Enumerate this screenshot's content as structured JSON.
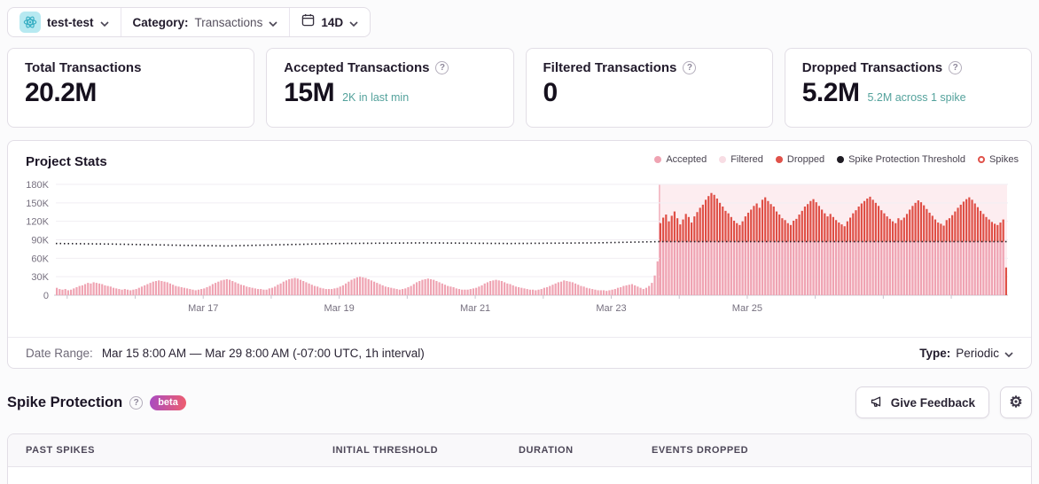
{
  "topbar": {
    "project": "test-test",
    "category_label": "Category:",
    "category_value": "Transactions",
    "date_range": "14D"
  },
  "cards": [
    {
      "title": "Total Transactions",
      "value": "20.2M",
      "sub": ""
    },
    {
      "title": "Accepted Transactions",
      "value": "15M",
      "sub": "2K in last min"
    },
    {
      "title": "Filtered Transactions",
      "value": "0",
      "sub": ""
    },
    {
      "title": "Dropped Transactions",
      "value": "5.2M",
      "sub": "5.2M across 1 spike"
    }
  ],
  "chart": {
    "title": "Project Stats",
    "legend": [
      {
        "label": "Accepted",
        "color": "#efa3b2",
        "marker": "dot"
      },
      {
        "label": "Filtered",
        "color": "#f8dde4",
        "marker": "dot"
      },
      {
        "label": "Dropped",
        "color": "#e0524a",
        "marker": "dot"
      },
      {
        "label": "Spike Protection Threshold",
        "color": "#1f1c24",
        "marker": "dot"
      },
      {
        "label": "Spikes",
        "color": "#e0524a",
        "marker": "ring"
      }
    ]
  },
  "chart_data": {
    "type": "bar",
    "stacked": true,
    "interval": "1h",
    "hours": 336,
    "x_start": "Mar 15 8:00 AM",
    "x_end": "Mar 29 8:00 AM",
    "ylim_k": [
      0,
      180
    ],
    "y_ticks": [
      {
        "k": 180,
        "label": "180K"
      },
      {
        "k": 150,
        "label": "150K"
      },
      {
        "k": 120,
        "label": "120K"
      },
      {
        "k": 90,
        "label": "90K"
      },
      {
        "k": 60,
        "label": "60K"
      },
      {
        "k": 30,
        "label": "30K"
      },
      {
        "k": 0,
        "label": "0"
      }
    ],
    "x_tick_labels": [
      {
        "label": "Mar 17",
        "hour": 52
      },
      {
        "label": "Mar 19",
        "hour": 100
      },
      {
        "label": "Mar 21",
        "hour": 148
      },
      {
        "label": "Mar 23",
        "hour": 196
      },
      {
        "label": "Mar 25",
        "hour": 244
      }
    ],
    "minor_tick_hours": [
      4,
      28,
      52,
      76,
      100,
      124,
      148,
      172,
      196,
      220,
      244,
      268,
      292,
      316
    ],
    "pre_spike_accepted_k": [
      12,
      10,
      9,
      10,
      8,
      9,
      11,
      13,
      15,
      16,
      18,
      20,
      19,
      21,
      20,
      19,
      18,
      16,
      15,
      14,
      12,
      11,
      10,
      9,
      10,
      9,
      8,
      9,
      10,
      12,
      14,
      16,
      18,
      20,
      22,
      23,
      24,
      23,
      22,
      21,
      19,
      17,
      15,
      14,
      13,
      12,
      11,
      10,
      9,
      8,
      9,
      10,
      11,
      13,
      15,
      18,
      20,
      22,
      24,
      25,
      26,
      25,
      23,
      21,
      19,
      17,
      16,
      14,
      13,
      12,
      11,
      10,
      10,
      9,
      9,
      11,
      12,
      14,
      17,
      19,
      22,
      24,
      26,
      27,
      28,
      27,
      25,
      23,
      21,
      19,
      17,
      15,
      14,
      12,
      11,
      10,
      10,
      10,
      11,
      12,
      14,
      16,
      19,
      22,
      25,
      27,
      29,
      30,
      29,
      28,
      26,
      24,
      22,
      20,
      18,
      16,
      14,
      13,
      12,
      11,
      10,
      9,
      10,
      11,
      13,
      15,
      18,
      21,
      23,
      25,
      26,
      27,
      26,
      25,
      23,
      21,
      19,
      17,
      15,
      14,
      13,
      11,
      10,
      9,
      9,
      9,
      10,
      11,
      12,
      14,
      16,
      19,
      21,
      23,
      24,
      25,
      24,
      23,
      21,
      19,
      18,
      16,
      14,
      13,
      12,
      11,
      10,
      9,
      9,
      8,
      9,
      10,
      12,
      13,
      15,
      17,
      19,
      21,
      22,
      24,
      23,
      22,
      21,
      19,
      17,
      15,
      14,
      12,
      11,
      10,
      9,
      8,
      8,
      8,
      7,
      8,
      9,
      10,
      12,
      13,
      15,
      16,
      17,
      18,
      16,
      14,
      12,
      10,
      12,
      15,
      20,
      32,
      55
    ],
    "spike_region": {
      "start_hour": 213,
      "end_hour": 335,
      "accepted_level_k": 87
    },
    "spike_dropped_k": [
      30,
      39,
      44,
      33,
      42,
      49,
      38,
      28,
      36,
      45,
      40,
      31,
      41,
      48,
      55,
      60,
      68,
      74,
      79,
      76,
      70,
      63,
      57,
      50,
      46,
      40,
      34,
      30,
      27,
      33,
      41,
      47,
      52,
      58,
      62,
      55,
      68,
      72,
      66,
      61,
      57,
      49,
      44,
      38,
      35,
      30,
      27,
      34,
      37,
      44,
      50,
      57,
      61,
      66,
      69,
      64,
      58,
      52,
      46,
      41,
      45,
      40,
      35,
      31,
      28,
      25,
      33,
      39,
      46,
      51,
      57,
      62,
      66,
      70,
      73,
      68,
      63,
      58,
      51,
      46,
      41,
      37,
      33,
      30,
      38,
      35,
      39,
      45,
      52,
      58,
      63,
      67,
      64,
      59,
      53,
      47,
      42,
      36,
      31,
      29,
      26,
      35,
      38,
      43,
      49,
      55,
      60,
      65,
      69,
      72,
      68,
      62,
      56,
      50,
      45,
      40,
      36,
      32,
      29,
      27,
      31,
      36
    ],
    "final_partial_bar_dropped_k": 45,
    "threshold_points": [
      [
        0,
        84
      ],
      [
        20,
        83
      ],
      [
        45,
        81
      ],
      [
        60,
        80
      ],
      [
        80,
        82
      ],
      [
        100,
        84
      ],
      [
        130,
        85
      ],
      [
        160,
        84
      ],
      [
        190,
        85
      ],
      [
        213,
        87
      ],
      [
        336,
        87
      ]
    ],
    "colors": {
      "accepted": "#efa3b2",
      "dropped": "#df4e45",
      "region_bg": "#fdedf0",
      "region_edge": "#f2b0bc",
      "threshold": "#1f1c24",
      "grid": "#f1eef3",
      "axis": "#c9c4cf",
      "axis_text": "#76707f"
    }
  },
  "chart_footer": {
    "label": "Date Range:",
    "value": "Mar 15 8:00 AM — Mar 29 8:00 AM (-07:00 UTC, 1h interval)",
    "type_label": "Type:",
    "type_value": "Periodic"
  },
  "section": {
    "title": "Spike Protection",
    "beta": "beta",
    "feedback_label": "Give Feedback"
  },
  "table": {
    "columns": [
      "PAST SPIKES",
      "INITIAL THRESHOLD",
      "DURATION",
      "EVENTS DROPPED"
    ]
  }
}
